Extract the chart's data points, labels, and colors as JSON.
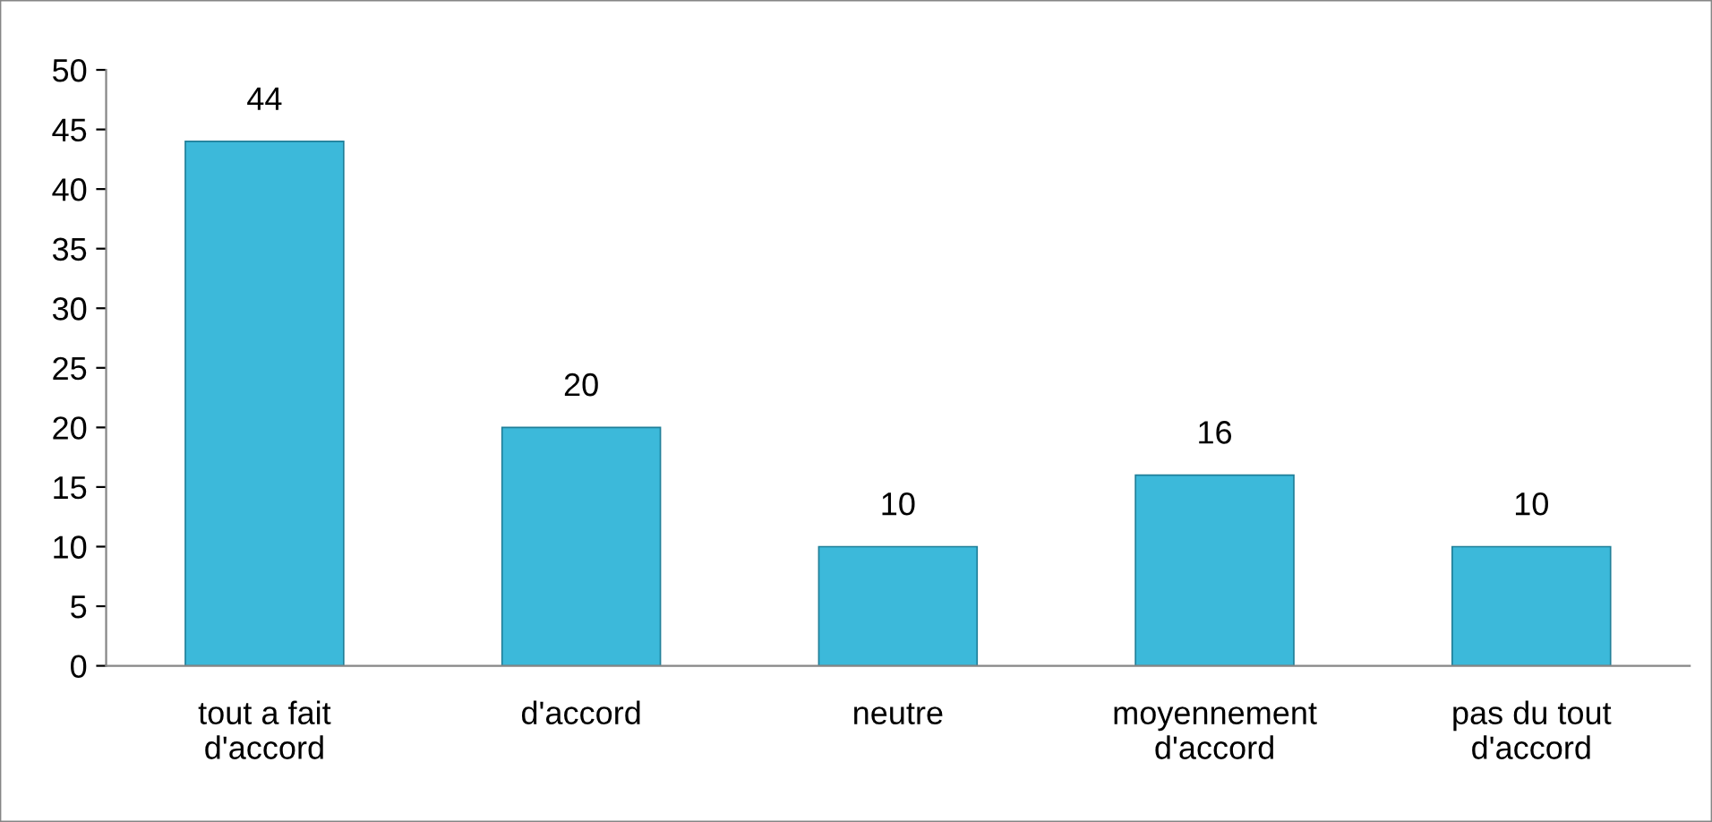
{
  "chart_data": {
    "type": "bar",
    "categories": [
      "tout a fait\nd'accord",
      "d'accord",
      "neutre",
      "moyennement\nd'accord",
      "pas du tout\nd'accord"
    ],
    "values": [
      44,
      20,
      10,
      16,
      10
    ],
    "color": "#3cb9da",
    "ylim": [
      0,
      50
    ],
    "yticks": [
      0,
      5,
      10,
      15,
      20,
      25,
      30,
      35,
      40,
      45,
      50
    ],
    "grid": false,
    "data_labels": true
  }
}
